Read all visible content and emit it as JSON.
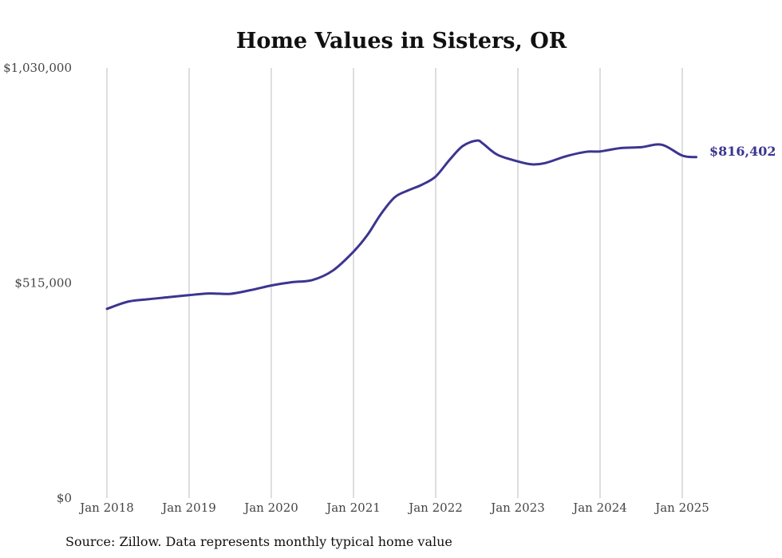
{
  "chart_data": {
    "type": "line",
    "title": "Home Values in Sisters, OR",
    "source": "Source: Zillow. Data represents monthly typical home value",
    "ylim": [
      0,
      1030000
    ],
    "y_ticks": [
      {
        "value": 1030000,
        "label": "$1,030,000"
      },
      {
        "value": 515000,
        "label": "$515,000"
      },
      {
        "value": 0,
        "label": "$0"
      }
    ],
    "x_ticks": [
      {
        "value": 2018.0,
        "label": "Jan 2018"
      },
      {
        "value": 2019.0,
        "label": "Jan 2019"
      },
      {
        "value": 2020.0,
        "label": "Jan 2020"
      },
      {
        "value": 2021.0,
        "label": "Jan 2021"
      },
      {
        "value": 2022.0,
        "label": "Jan 2022"
      },
      {
        "value": 2023.0,
        "label": "Jan 2023"
      },
      {
        "value": 2024.0,
        "label": "Jan 2024"
      },
      {
        "value": 2025.0,
        "label": "Jan 2025"
      }
    ],
    "xlim": [
      2018.0,
      2025.17
    ],
    "grid": true,
    "end_label": "$816,402",
    "series": [
      {
        "color": "#3b3590",
        "points": [
          [
            2018.0,
            453000
          ],
          [
            2018.25,
            470000
          ],
          [
            2018.5,
            476000
          ],
          [
            2018.75,
            481000
          ],
          [
            2019.0,
            486000
          ],
          [
            2019.25,
            490000
          ],
          [
            2019.5,
            489000
          ],
          [
            2019.75,
            498000
          ],
          [
            2020.0,
            509000
          ],
          [
            2020.25,
            517000
          ],
          [
            2020.5,
            522000
          ],
          [
            2020.75,
            545000
          ],
          [
            2021.0,
            590000
          ],
          [
            2021.17,
            630000
          ],
          [
            2021.33,
            679000
          ],
          [
            2021.5,
            720000
          ],
          [
            2021.67,
            737000
          ],
          [
            2021.83,
            750000
          ],
          [
            2022.0,
            770000
          ],
          [
            2022.17,
            810000
          ],
          [
            2022.33,
            843000
          ],
          [
            2022.5,
            856000
          ],
          [
            2022.58,
            848000
          ],
          [
            2022.75,
            822000
          ],
          [
            2023.0,
            806000
          ],
          [
            2023.17,
            799000
          ],
          [
            2023.33,
            802000
          ],
          [
            2023.58,
            818000
          ],
          [
            2023.83,
            829000
          ],
          [
            2024.0,
            830000
          ],
          [
            2024.25,
            838000
          ],
          [
            2024.5,
            840000
          ],
          [
            2024.75,
            846000
          ],
          [
            2025.0,
            820000
          ],
          [
            2025.17,
            816402
          ]
        ]
      }
    ]
  }
}
